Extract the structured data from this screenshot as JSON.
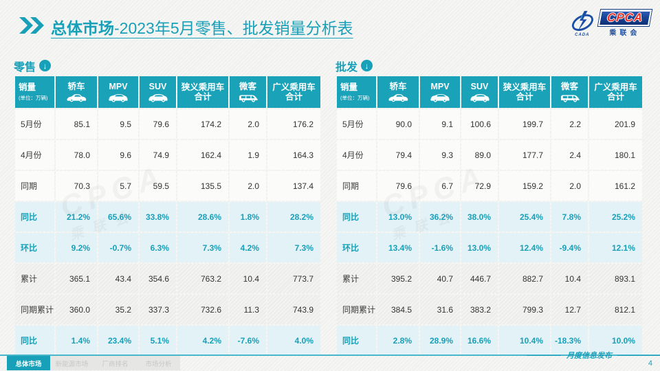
{
  "header": {
    "title_bold": "总体市场",
    "title_rest": "-2023年5月零售、批发销量分析表"
  },
  "logo": {
    "cpca": "CPCA",
    "cada": "CADA",
    "cn_name": "乘联会"
  },
  "tables": {
    "unit_label": "销量",
    "unit_note": "(单位：万辆)",
    "columns": [
      {
        "name": "sedan",
        "label": "轿车",
        "icon": "sedan-icon"
      },
      {
        "name": "mpv",
        "label": "MPV",
        "icon": "mpv-icon"
      },
      {
        "name": "suv",
        "label": "SUV",
        "icon": "suv-icon"
      },
      {
        "name": "narrow-pv-total",
        "label": "狭义乘用车",
        "label2": "合计"
      },
      {
        "name": "microvan",
        "label": "微客",
        "icon": "microvan-icon"
      },
      {
        "name": "broad-pv-total",
        "label": "广义乘用车",
        "label2": "合计"
      }
    ],
    "retail": {
      "label": "零售",
      "rows": [
        {
          "label": "5月份",
          "style": "plain",
          "values": [
            "85.1",
            "9.5",
            "79.6",
            "174.2",
            "2.0",
            "176.2"
          ]
        },
        {
          "label": "4月份",
          "style": "plain",
          "values": [
            "78.0",
            "9.6",
            "74.9",
            "162.4",
            "1.9",
            "164.3"
          ]
        },
        {
          "label": "同期",
          "style": "plain",
          "values": [
            "70.3",
            "5.7",
            "59.5",
            "135.5",
            "2.0",
            "137.4"
          ]
        },
        {
          "label": "同比",
          "style": "hl",
          "values": [
            "21.2%",
            "65.6%",
            "33.8%",
            "28.6%",
            "1.8%",
            "28.2%"
          ]
        },
        {
          "label": "环比",
          "style": "hl",
          "values": [
            "9.2%",
            "-0.7%",
            "6.3%",
            "7.3%",
            "4.2%",
            "7.3%"
          ]
        },
        {
          "label": "累计",
          "style": "gray",
          "values": [
            "365.1",
            "43.4",
            "354.6",
            "763.2",
            "10.4",
            "773.7"
          ]
        },
        {
          "label": "同期累计",
          "style": "gray",
          "values": [
            "360.0",
            "35.2",
            "337.3",
            "732.6",
            "11.3",
            "743.9"
          ]
        },
        {
          "label": "同比",
          "style": "hl",
          "values": [
            "1.4%",
            "23.4%",
            "5.1%",
            "4.2%",
            "-7.6%",
            "4.0%"
          ]
        }
      ]
    },
    "wholesale": {
      "label": "批发",
      "rows": [
        {
          "label": "5月份",
          "style": "plain",
          "values": [
            "90.0",
            "9.1",
            "100.6",
            "199.7",
            "2.2",
            "201.9"
          ]
        },
        {
          "label": "4月份",
          "style": "plain",
          "values": [
            "79.4",
            "9.3",
            "89.0",
            "177.7",
            "2.4",
            "180.1"
          ]
        },
        {
          "label": "同期",
          "style": "plain",
          "values": [
            "79.6",
            "6.7",
            "72.9",
            "159.2",
            "2.0",
            "161.2"
          ]
        },
        {
          "label": "同比",
          "style": "hl",
          "values": [
            "13.0%",
            "36.2%",
            "38.0%",
            "25.4%",
            "7.8%",
            "25.2%"
          ]
        },
        {
          "label": "环比",
          "style": "hl",
          "values": [
            "13.4%",
            "-1.6%",
            "13.0%",
            "12.4%",
            "-9.4%",
            "12.1%"
          ]
        },
        {
          "label": "累计",
          "style": "gray",
          "values": [
            "395.2",
            "40.7",
            "446.7",
            "882.7",
            "10.4",
            "893.1"
          ]
        },
        {
          "label": "同期累计",
          "style": "gray",
          "values": [
            "384.5",
            "31.6",
            "383.2",
            "799.3",
            "12.7",
            "812.1"
          ]
        },
        {
          "label": "同比",
          "style": "hl",
          "values": [
            "2.8%",
            "28.9%",
            "16.6%",
            "10.4%",
            "-18.3%",
            "10.0%"
          ]
        }
      ]
    }
  },
  "footer": {
    "tabs": [
      {
        "name": "overall-market",
        "label": "总体市场",
        "active": true
      },
      {
        "name": "nev-market",
        "label": "新能源市场",
        "active": false
      },
      {
        "name": "oem-ranking",
        "label": "厂商排名",
        "active": false
      },
      {
        "name": "market-analysis",
        "label": "市场分析",
        "active": false
      }
    ],
    "note": "月度信息发布",
    "page_number": "4"
  },
  "icons": {
    "arrow_down": "↓"
  },
  "colors": {
    "teal": "#17A0B8",
    "header_teal": "#1AA2B9",
    "highlight_row_bg": "#E2F2F7",
    "gray_row_bg": "#EDEDEB",
    "logo_blue": "#1C4FA3",
    "logo_red": "#E5352C",
    "footer_line": "#49B7CB"
  }
}
